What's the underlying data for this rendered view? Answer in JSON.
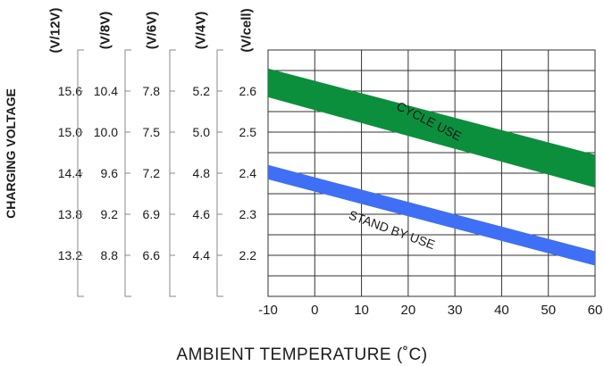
{
  "chart_data": {
    "type": "area",
    "xlabel": "AMBIENT TEMPERATURE (˚C)",
    "ylabel": "CHARGING VOLTAGE",
    "xlim": [
      -10,
      60
    ],
    "ylim": [
      2.1,
      2.7
    ],
    "x_ticks": [
      "-10",
      "0",
      "10",
      "20",
      "30",
      "40",
      "50",
      "60"
    ],
    "grid": true,
    "scales": [
      {
        "header": "(V/12V)",
        "ticks": [
          "15.6",
          "15.0",
          "14.4",
          "13.8",
          "13.2"
        ]
      },
      {
        "header": "(V/8V)",
        "ticks": [
          "10.4",
          "10.0",
          "9.6",
          "9.2",
          "8.8"
        ]
      },
      {
        "header": "(V/6V)",
        "ticks": [
          "7.8",
          "7.5",
          "7.2",
          "6.9",
          "6.6"
        ]
      },
      {
        "header": "(V/4V)",
        "ticks": [
          "5.2",
          "5.0",
          "4.8",
          "4.6",
          "4.4"
        ]
      },
      {
        "header": "(V/cell)",
        "ticks": [
          "2.6",
          "2.5",
          "2.4",
          "2.3",
          "2.2"
        ]
      }
    ],
    "tick_values": [
      2.6,
      2.5,
      2.4,
      2.3,
      2.2
    ],
    "series": [
      {
        "name": "CYCLE USE",
        "color": "#0b8f3c",
        "x": [
          -10,
          60
        ],
        "upper": [
          2.655,
          2.445
        ],
        "lower": [
          2.585,
          2.365
        ]
      },
      {
        "name": "STAND BY USE",
        "color": "#3f6ff5",
        "x": [
          -10,
          60
        ],
        "upper": [
          2.42,
          2.21
        ],
        "lower": [
          2.385,
          2.175
        ]
      }
    ]
  }
}
